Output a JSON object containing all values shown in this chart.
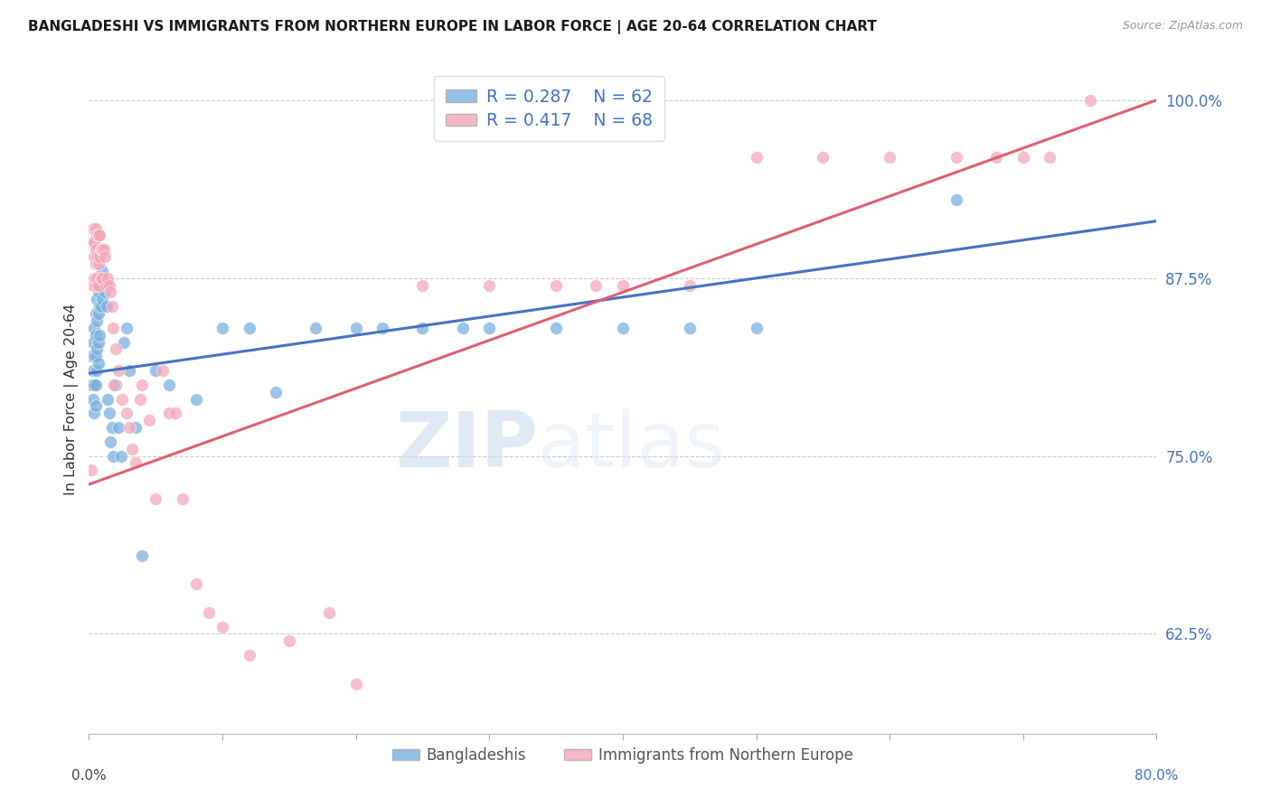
{
  "title": "BANGLADESHI VS IMMIGRANTS FROM NORTHERN EUROPE IN LABOR FORCE | AGE 20-64 CORRELATION CHART",
  "source": "Source: ZipAtlas.com",
  "ylabel": "In Labor Force | Age 20-64",
  "right_yticks": [
    0.625,
    0.75,
    0.875,
    1.0
  ],
  "right_yticklabels": [
    "62.5%",
    "75.0%",
    "87.5%",
    "100.0%"
  ],
  "xmin": 0.0,
  "xmax": 0.8,
  "ymin": 0.555,
  "ymax": 1.025,
  "blue_color": "#7ab0e0",
  "pink_color": "#f4a7b9",
  "blue_line_color": "#4472c4",
  "pink_line_color": "#e06070",
  "legend_blue_label": "R = 0.287    N = 62",
  "legend_pink_label": "R = 0.417    N = 68",
  "legend_blue_series": "Bangladeshis",
  "legend_pink_series": "Immigrants from Northern Europe",
  "watermark_zip": "ZIP",
  "watermark_atlas": "atlas",
  "blue_x": [
    0.002,
    0.002,
    0.003,
    0.003,
    0.003,
    0.004,
    0.004,
    0.004,
    0.004,
    0.005,
    0.005,
    0.005,
    0.005,
    0.005,
    0.006,
    0.006,
    0.006,
    0.006,
    0.007,
    0.007,
    0.007,
    0.007,
    0.008,
    0.008,
    0.008,
    0.009,
    0.009,
    0.01,
    0.01,
    0.011,
    0.012,
    0.013,
    0.014,
    0.015,
    0.016,
    0.017,
    0.018,
    0.02,
    0.022,
    0.024,
    0.026,
    0.028,
    0.03,
    0.035,
    0.04,
    0.05,
    0.06,
    0.08,
    0.1,
    0.12,
    0.14,
    0.17,
    0.2,
    0.22,
    0.25,
    0.28,
    0.3,
    0.35,
    0.4,
    0.45,
    0.5,
    0.65
  ],
  "blue_y": [
    0.82,
    0.8,
    0.83,
    0.81,
    0.79,
    0.84,
    0.82,
    0.8,
    0.78,
    0.85,
    0.835,
    0.82,
    0.8,
    0.785,
    0.86,
    0.845,
    0.825,
    0.81,
    0.865,
    0.85,
    0.83,
    0.815,
    0.87,
    0.855,
    0.835,
    0.875,
    0.855,
    0.88,
    0.86,
    0.87,
    0.865,
    0.855,
    0.79,
    0.78,
    0.76,
    0.77,
    0.75,
    0.8,
    0.77,
    0.75,
    0.83,
    0.84,
    0.81,
    0.77,
    0.68,
    0.81,
    0.8,
    0.79,
    0.84,
    0.84,
    0.795,
    0.84,
    0.84,
    0.84,
    0.84,
    0.84,
    0.84,
    0.84,
    0.84,
    0.84,
    0.84,
    0.93
  ],
  "pink_x": [
    0.002,
    0.003,
    0.003,
    0.003,
    0.004,
    0.004,
    0.004,
    0.005,
    0.005,
    0.005,
    0.005,
    0.006,
    0.006,
    0.006,
    0.007,
    0.007,
    0.007,
    0.008,
    0.008,
    0.009,
    0.009,
    0.01,
    0.01,
    0.011,
    0.012,
    0.013,
    0.014,
    0.015,
    0.016,
    0.017,
    0.018,
    0.019,
    0.02,
    0.022,
    0.025,
    0.028,
    0.03,
    0.032,
    0.035,
    0.038,
    0.04,
    0.045,
    0.05,
    0.055,
    0.06,
    0.065,
    0.07,
    0.08,
    0.09,
    0.1,
    0.12,
    0.15,
    0.18,
    0.2,
    0.25,
    0.3,
    0.35,
    0.38,
    0.4,
    0.45,
    0.5,
    0.55,
    0.6,
    0.65,
    0.68,
    0.7,
    0.72,
    0.75
  ],
  "pink_y": [
    0.74,
    0.87,
    0.91,
    0.9,
    0.9,
    0.89,
    0.875,
    0.91,
    0.895,
    0.885,
    0.87,
    0.905,
    0.89,
    0.875,
    0.905,
    0.885,
    0.87,
    0.905,
    0.89,
    0.895,
    0.875,
    0.895,
    0.875,
    0.895,
    0.89,
    0.87,
    0.875,
    0.87,
    0.865,
    0.855,
    0.84,
    0.8,
    0.825,
    0.81,
    0.79,
    0.78,
    0.77,
    0.755,
    0.745,
    0.79,
    0.8,
    0.775,
    0.72,
    0.81,
    0.78,
    0.78,
    0.72,
    0.66,
    0.64,
    0.63,
    0.61,
    0.62,
    0.64,
    0.59,
    0.87,
    0.87,
    0.87,
    0.87,
    0.87,
    0.87,
    0.96,
    0.96,
    0.96,
    0.96,
    0.96,
    0.96,
    0.96,
    1.0
  ]
}
